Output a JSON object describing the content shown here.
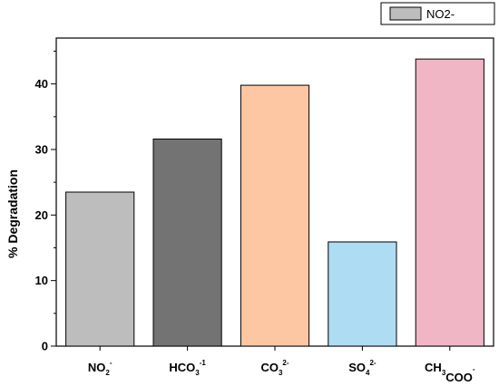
{
  "chart_data": {
    "type": "bar",
    "categories": [
      {
        "base": "NO",
        "sub1": "2",
        "sup1": "-",
        "mid": "",
        "sub2": "",
        "sup2": ""
      },
      {
        "base": "HCO",
        "sub1": "3",
        "sup1": "-1",
        "mid": "",
        "sub2": "",
        "sup2": ""
      },
      {
        "base": "CO",
        "sub1": "3",
        "sup1": "2-",
        "mid": "",
        "sub2": "",
        "sup2": ""
      },
      {
        "base": "SO",
        "sub1": "4",
        "sup1": "2-",
        "mid": "",
        "sub2": "",
        "sup2": ""
      },
      {
        "base": "CH",
        "sub1": "3",
        "sup1": "",
        "mid": "COO",
        "sub2": "",
        "sup2": "-"
      }
    ],
    "values": [
      23.5,
      31.6,
      39.8,
      15.9,
      43.8
    ],
    "colors": [
      "#bdbdbd",
      "#737373",
      "#fdc7a3",
      "#aedcf2",
      "#f0b6c6"
    ],
    "ylabel": "% Degradation",
    "xlabel": "",
    "ylim": [
      0,
      47
    ],
    "yticks": [
      0,
      10,
      20,
      30,
      40
    ],
    "grid": false,
    "legend": {
      "position": "top-right",
      "entries": [
        {
          "name": "NO2-",
          "color": "#bdbdbd"
        }
      ]
    }
  }
}
